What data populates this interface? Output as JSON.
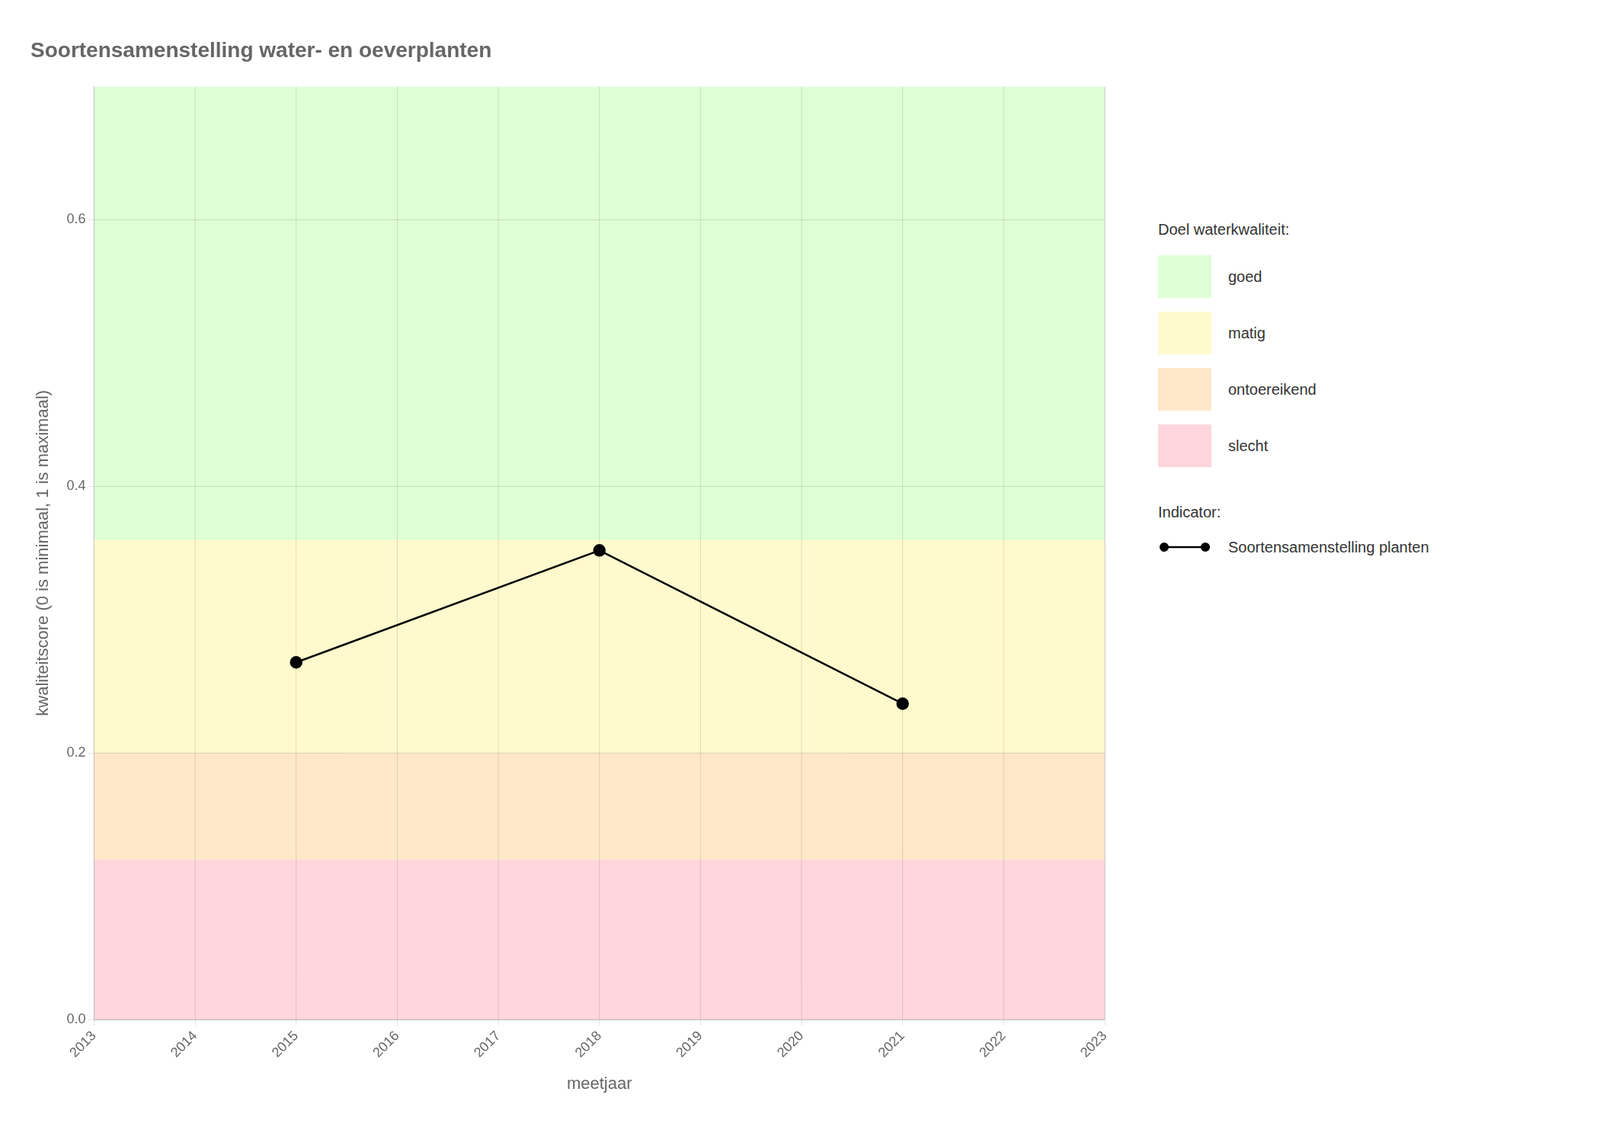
{
  "chart_data": {
    "type": "line",
    "title": "Soortensamenstelling water- en oeverplanten",
    "x_label": "meetjaar",
    "y_label": "kwaliteitscore (0 is minimaal, 1 is maximaal)",
    "x": [
      2015,
      2018,
      2021
    ],
    "series": [
      {
        "name": "Soortensamenstelling planten",
        "color": "black",
        "marker": "circle",
        "values": [
          0.268,
          0.352,
          0.237
        ]
      }
    ],
    "xlim": [
      2013,
      2023
    ],
    "xticks": [
      2013,
      2014,
      2015,
      2016,
      2017,
      2018,
      2019,
      2020,
      2021,
      2022,
      2023
    ],
    "ylim": [
      0.0,
      0.7
    ],
    "yticks": [
      {
        "value": 0.0,
        "label": "0.0"
      },
      0.2,
      0.4,
      0.6
    ],
    "grid": true,
    "bands_title": "Doel waterkwaliteit:",
    "bands": [
      {
        "ymin": 0.36,
        "ymax": 0.7,
        "color": "#DFFFD6",
        "label": "goed"
      },
      {
        "ymin": 0.2,
        "ymax": 0.36,
        "color": "#FFFACD",
        "label": "matig"
      },
      {
        "ymin": 0.12,
        "ymax": 0.2,
        "color": "#FFE8C8",
        "label": "ontoereikend"
      },
      {
        "ymin": 0.0,
        "ymax": 0.12,
        "color": "#FFD6DC",
        "label": "slecht"
      }
    ],
    "series_title": "Indicator:"
  }
}
